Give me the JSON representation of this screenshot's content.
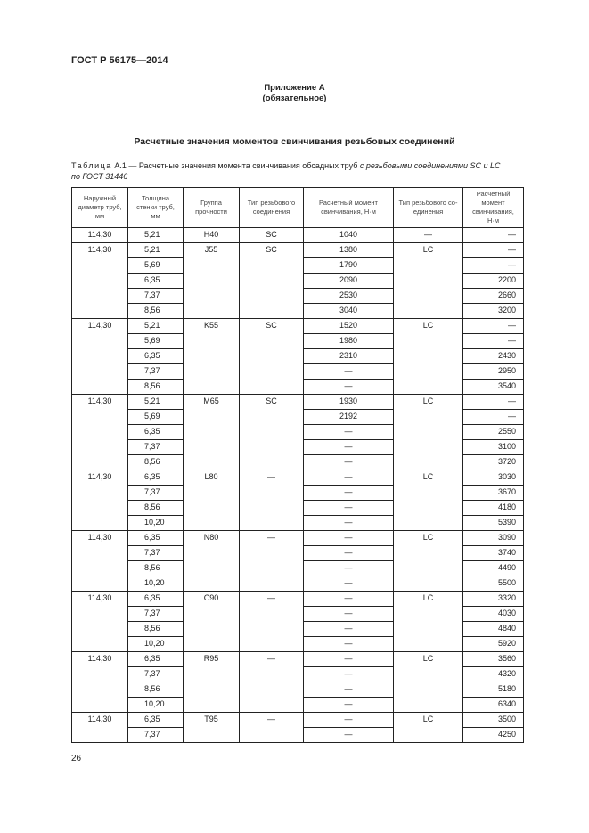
{
  "header": "ГОСТ Р 56175—2014",
  "appendix": {
    "title": "Приложение А",
    "subtitle": "(обязательное)"
  },
  "section_title": "Расчетные значения моментов свинчивания резьбовых соединений",
  "caption": {
    "label": "Таблица",
    "number": "А.1",
    "text": " — Расчетные значения момента свинчивания обсадных труб ",
    "italic": "с резьбовыми соединениями SC и LC",
    "line2": "по ГОСТ 31446"
  },
  "columns": [
    "Наружный диаметр труб, мм",
    "Толщина стенки труб, мм",
    "Группа прочности",
    "Тип резьбового соединения",
    "Расчетный момент свинчивания, Н·м",
    "Тип резьбового со-единения",
    "Расчетный момент свинчивания, Н·м"
  ],
  "groups": [
    {
      "outer": "114,30",
      "grade": "H40",
      "sc": "SC",
      "lc": "—",
      "rows": [
        [
          "5,21",
          "1040",
          "—"
        ]
      ]
    },
    {
      "outer": "114,30",
      "grade": "J55",
      "sc": "SC",
      "lc": "LC",
      "rows": [
        [
          "5,21",
          "1380",
          "—"
        ],
        [
          "5,69",
          "1790",
          "—"
        ],
        [
          "6,35",
          "2090",
          "2200"
        ],
        [
          "7,37",
          "2530",
          "2660"
        ],
        [
          "8,56",
          "3040",
          "3200"
        ]
      ]
    },
    {
      "outer": "114,30",
      "grade": "K55",
      "sc": "SC",
      "lc": "LC",
      "rows": [
        [
          "5,21",
          "1520",
          "—"
        ],
        [
          "5,69",
          "1980",
          "—"
        ],
        [
          "6,35",
          "2310",
          "2430"
        ],
        [
          "7,37",
          "—",
          "2950"
        ],
        [
          "8,56",
          "—",
          "3540"
        ]
      ]
    },
    {
      "outer": "114,30",
      "grade": "M65",
      "sc": "SC",
      "lc": "LC",
      "rows": [
        [
          "5,21",
          "1930",
          "—"
        ],
        [
          "5,69",
          "2192",
          "—"
        ],
        [
          "6,35",
          "—",
          "2550"
        ],
        [
          "7,37",
          "—",
          "3100"
        ],
        [
          "8,56",
          "—",
          "3720"
        ]
      ]
    },
    {
      "outer": "114,30",
      "grade": "L80",
      "sc": "—",
      "lc": "LC",
      "rows": [
        [
          "6,35",
          "—",
          "3030"
        ],
        [
          "7,37",
          "—",
          "3670"
        ],
        [
          "8,56",
          "—",
          "4180"
        ],
        [
          "10,20",
          "—",
          "5390"
        ]
      ]
    },
    {
      "outer": "114,30",
      "grade": "N80",
      "sc": "—",
      "lc": "LC",
      "rows": [
        [
          "6,35",
          "—",
          "3090"
        ],
        [
          "7,37",
          "—",
          "3740"
        ],
        [
          "8,56",
          "—",
          "4490"
        ],
        [
          "10,20",
          "—",
          "5500"
        ]
      ]
    },
    {
      "outer": "114,30",
      "grade": "C90",
      "sc": "—",
      "lc": "LC",
      "rows": [
        [
          "6,35",
          "—",
          "3320"
        ],
        [
          "7,37",
          "—",
          "4030"
        ],
        [
          "8,56",
          "—",
          "4840"
        ],
        [
          "10,20",
          "—",
          "5920"
        ]
      ]
    },
    {
      "outer": "114,30",
      "grade": "R95",
      "sc": "—",
      "lc": "LC",
      "rows": [
        [
          "6,35",
          "—",
          "3560"
        ],
        [
          "7,37",
          "—",
          "4320"
        ],
        [
          "8,56",
          "—",
          "5180"
        ],
        [
          "10,20",
          "—",
          "6340"
        ]
      ]
    },
    {
      "outer": "114,30",
      "grade": "T95",
      "sc": "—",
      "lc": "LC",
      "rows": [
        [
          "6,35",
          "—",
          "3500"
        ],
        [
          "7,37",
          "—",
          "4250"
        ]
      ]
    }
  ],
  "page_number": "26"
}
